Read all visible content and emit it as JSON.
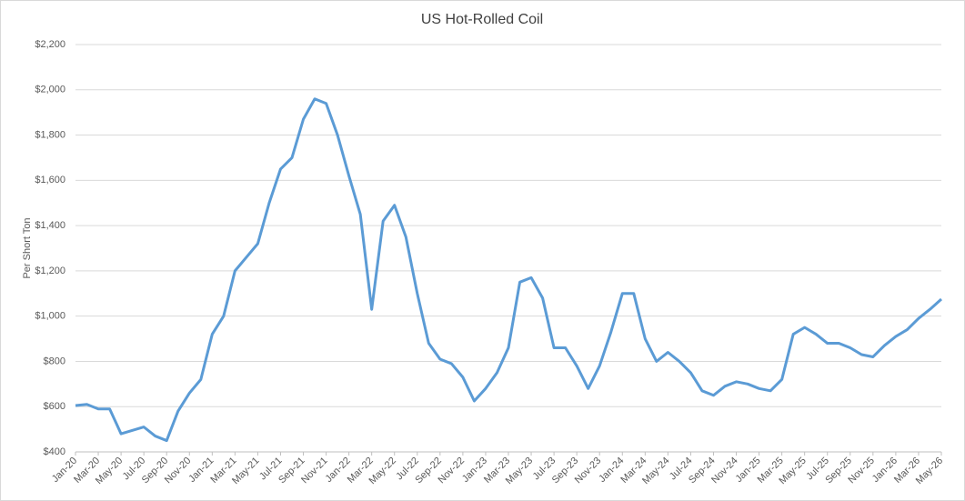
{
  "chart_data": {
    "type": "line",
    "title": "US Hot-Rolled Coil",
    "y_label": "Per Short Ton",
    "categories": [
      "Jan-20",
      null,
      "Mar-20",
      null,
      "May-20",
      null,
      "Jul-20",
      null,
      "Sep-20",
      null,
      "Nov-20",
      null,
      "Jan-21",
      null,
      "Mar-21",
      null,
      "May-21",
      null,
      "Jul-21",
      null,
      "Sep-21",
      null,
      "Nov-21",
      null,
      "Jan-22",
      null,
      "Mar-22",
      null,
      "May-22",
      null,
      "Jul-22",
      null,
      "Sep-22",
      null,
      "Nov-22",
      null,
      "Jan-23",
      null,
      "Mar-23",
      null,
      "May-23",
      null,
      "Jul-23",
      null,
      "Sep-23",
      null,
      "Nov-23",
      null,
      "Jan-24",
      null,
      "Mar-24",
      null,
      "May-24",
      null,
      "Jul-24",
      null,
      "Sep-24",
      null,
      "Nov-24",
      null,
      "Jan-25",
      null,
      "Mar-25",
      null,
      "May-25",
      null,
      "Jul-25",
      null,
      "Sep-25",
      null,
      "Nov-25",
      null,
      "Jan-26",
      null,
      "Mar-26",
      null,
      "May-26"
    ],
    "series": [
      {
        "name": "US Hot-Rolled Coil",
        "color": "#5b9bd5",
        "values": [
          605,
          610,
          590,
          590,
          480,
          495,
          510,
          470,
          450,
          580,
          660,
          720,
          920,
          1000,
          1200,
          1260,
          1320,
          1500,
          1650,
          1700,
          1870,
          1960,
          1940,
          1800,
          1620,
          1450,
          1030,
          1420,
          1490,
          1350,
          1100,
          880,
          810,
          790,
          730,
          625,
          680,
          750,
          860,
          1150,
          1170,
          1080,
          860,
          860,
          780,
          680,
          780,
          930,
          1100,
          1100,
          900,
          800,
          840,
          800,
          750,
          670,
          650,
          690,
          710,
          700,
          680,
          670,
          720,
          920,
          950,
          920,
          880,
          880,
          860,
          830,
          820,
          870,
          910,
          940,
          990,
          1030,
          1075
        ]
      }
    ],
    "ylim": [
      400,
      2200
    ],
    "yticks": [
      {
        "value": 400,
        "label": "$400"
      },
      {
        "value": 600,
        "label": "$600"
      },
      {
        "value": 800,
        "label": "$800"
      },
      {
        "value": 1000,
        "label": "$1,000"
      },
      {
        "value": 1200,
        "label": "$1,200"
      },
      {
        "value": 1400,
        "label": "$1,400"
      },
      {
        "value": 1600,
        "label": "$1,600"
      },
      {
        "value": 1800,
        "label": "$1,800"
      },
      {
        "value": 2000,
        "label": "$2,000"
      },
      {
        "value": 2200,
        "label": "$2,200"
      }
    ],
    "grid": true
  }
}
